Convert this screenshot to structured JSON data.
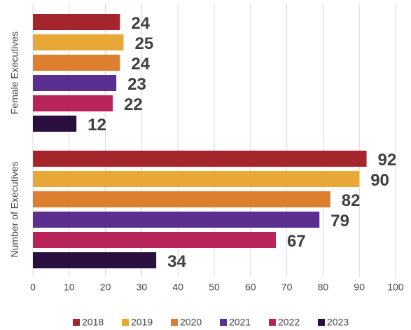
{
  "chart_data": {
    "type": "hbar",
    "categories": [
      "Female Executives",
      "Number of Executives"
    ],
    "series": [
      {
        "name": "2018",
        "color": "#a4262c",
        "values": [
          24,
          92
        ]
      },
      {
        "name": "2019",
        "color": "#e8a838",
        "values": [
          25,
          90
        ]
      },
      {
        "name": "2020",
        "color": "#dc8030",
        "values": [
          24,
          82
        ]
      },
      {
        "name": "2021",
        "color": "#5b2f8f",
        "values": [
          23,
          79
        ]
      },
      {
        "name": "2022",
        "color": "#b8235a",
        "values": [
          22,
          67
        ]
      },
      {
        "name": "2023",
        "color": "#2a0f3f",
        "values": [
          12,
          34
        ]
      }
    ],
    "xlim": [
      0,
      100
    ],
    "xticks": [
      0,
      10,
      20,
      30,
      40,
      50,
      60,
      70,
      80,
      90,
      100
    ],
    "grid": true,
    "legend": "bottom"
  }
}
